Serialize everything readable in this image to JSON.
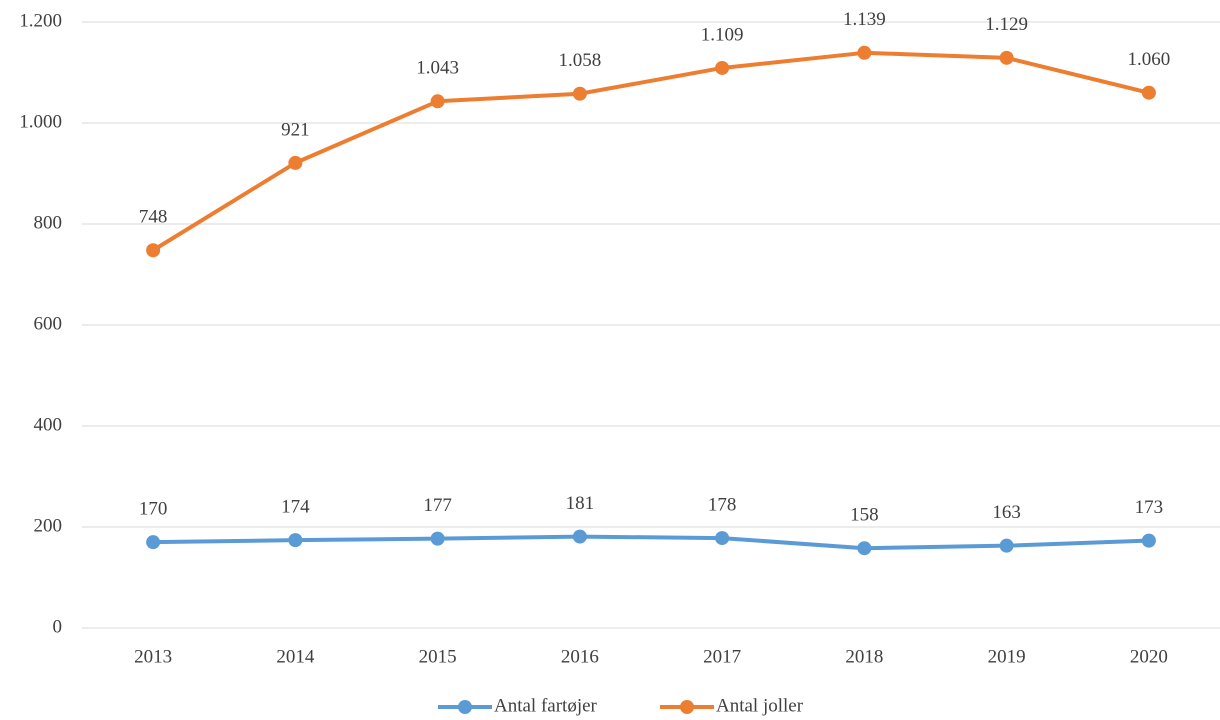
{
  "chart_data": {
    "type": "line",
    "categories": [
      "2013",
      "2014",
      "2015",
      "2016",
      "2017",
      "2018",
      "2019",
      "2020"
    ],
    "series": [
      {
        "name": "Antal fartøjer",
        "color": "#5b9bd5",
        "values": [
          170,
          174,
          177,
          181,
          178,
          158,
          163,
          173
        ]
      },
      {
        "name": "Antal joller",
        "color": "#ed7d31",
        "values": [
          748,
          921,
          1043,
          1058,
          1109,
          1139,
          1129,
          1060
        ],
        "value_labels": [
          "748",
          "921",
          "1.043",
          "1.058",
          "1.109",
          "1.139",
          "1.129",
          "1.060"
        ]
      }
    ],
    "ylim": [
      0,
      1200
    ],
    "yticks": [
      0,
      200,
      400,
      600,
      800,
      {
        "value": 1000,
        "label": "1.000"
      },
      {
        "value": 1200,
        "label": "1.200"
      }
    ],
    "grid": true,
    "legend": "bottom"
  }
}
